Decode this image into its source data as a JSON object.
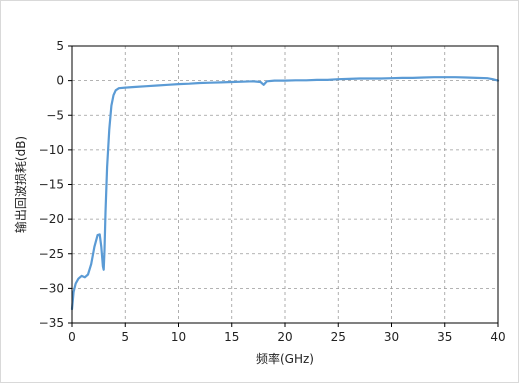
{
  "chart_data": {
    "type": "line",
    "title": "",
    "xlabel": "频率(GHz)",
    "ylabel": "输出回波损耗(dB)",
    "xlim": [
      0,
      40
    ],
    "ylim": [
      -35,
      5
    ],
    "xticks": [
      0,
      5,
      10,
      15,
      20,
      25,
      30,
      35,
      40
    ],
    "yticks": [
      5,
      0,
      -5,
      -10,
      -15,
      -20,
      -25,
      -30,
      -35
    ],
    "grid": true,
    "legend": "none",
    "line_color": "#5b9bd5",
    "series": [
      {
        "values": [
          [
            0.0,
            -33.0
          ],
          [
            0.15,
            -30.5
          ],
          [
            0.35,
            -29.3
          ],
          [
            0.6,
            -28.6
          ],
          [
            0.9,
            -28.2
          ],
          [
            1.2,
            -28.4
          ],
          [
            1.5,
            -28.0
          ],
          [
            1.8,
            -26.5
          ],
          [
            2.1,
            -24.0
          ],
          [
            2.4,
            -22.3
          ],
          [
            2.6,
            -22.2
          ],
          [
            2.75,
            -24.0
          ],
          [
            2.9,
            -26.8
          ],
          [
            2.98,
            -27.3
          ],
          [
            3.05,
            -24.5
          ],
          [
            3.15,
            -19.0
          ],
          [
            3.3,
            -12.5
          ],
          [
            3.5,
            -7.0
          ],
          [
            3.7,
            -3.6
          ],
          [
            3.9,
            -2.1
          ],
          [
            4.1,
            -1.4
          ],
          [
            4.4,
            -1.1
          ],
          [
            5.0,
            -1.0
          ],
          [
            6.0,
            -0.9
          ],
          [
            7.0,
            -0.8
          ],
          [
            8.0,
            -0.7
          ],
          [
            9.0,
            -0.6
          ],
          [
            10.0,
            -0.5
          ],
          [
            11.0,
            -0.45
          ],
          [
            12.0,
            -0.35
          ],
          [
            13.0,
            -0.3
          ],
          [
            14.0,
            -0.25
          ],
          [
            15.0,
            -0.2
          ],
          [
            16.0,
            -0.15
          ],
          [
            17.0,
            -0.1
          ],
          [
            17.7,
            -0.2
          ],
          [
            18.0,
            -0.6
          ],
          [
            18.3,
            -0.1
          ],
          [
            19.0,
            0.0
          ],
          [
            20.0,
            0.0
          ],
          [
            21.0,
            0.05
          ],
          [
            22.0,
            0.05
          ],
          [
            23.0,
            0.1
          ],
          [
            24.0,
            0.1
          ],
          [
            25.0,
            0.2
          ],
          [
            26.0,
            0.25
          ],
          [
            27.0,
            0.3
          ],
          [
            28.0,
            0.3
          ],
          [
            29.0,
            0.3
          ],
          [
            30.0,
            0.35
          ],
          [
            31.0,
            0.4
          ],
          [
            32.0,
            0.4
          ],
          [
            33.0,
            0.45
          ],
          [
            34.0,
            0.5
          ],
          [
            35.0,
            0.5
          ],
          [
            36.0,
            0.5
          ],
          [
            37.0,
            0.45
          ],
          [
            38.0,
            0.4
          ],
          [
            39.0,
            0.35
          ],
          [
            39.5,
            0.2
          ],
          [
            40.0,
            0.0
          ]
        ]
      }
    ]
  }
}
